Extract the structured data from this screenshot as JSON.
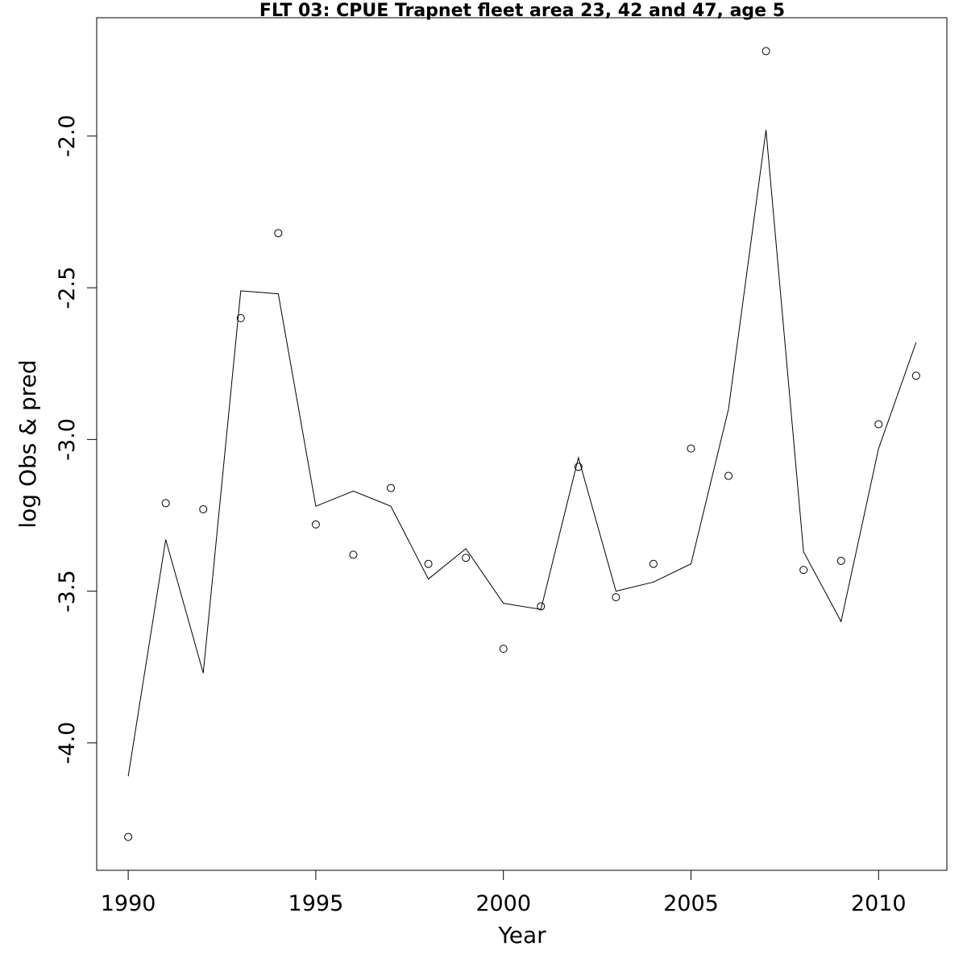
{
  "chart_data": {
    "type": "line",
    "title": "FLT 03: CPUE Trapnet fleet area 23, 42 and 47, age 5",
    "xlabel": "Year",
    "ylabel": "log Obs & pred",
    "xlim": [
      1989.16,
      2011.82
    ],
    "ylim": [
      -4.42,
      -1.61
    ],
    "grid": false,
    "x_ticks": [
      1990,
      1995,
      2000,
      2005,
      2010
    ],
    "x_tick_labels": [
      "1990",
      "1995",
      "2000",
      "2005",
      "2010"
    ],
    "y_ticks": [
      -4.0,
      -3.5,
      -3.0,
      -2.5,
      -2.0
    ],
    "y_tick_labels": [
      "-4.0",
      "-3.5",
      "-3.0",
      "-2.5",
      "-2.0"
    ],
    "x": [
      1990,
      1991,
      1992,
      1993,
      1994,
      1995,
      1996,
      1997,
      1998,
      1999,
      2000,
      2001,
      2002,
      2003,
      2004,
      2005,
      2006,
      2007,
      2008,
      2009,
      2010,
      2011
    ],
    "series": [
      {
        "style": "points-open-circle",
        "values": [
          -4.31,
          -3.21,
          -3.23,
          -2.6,
          -2.32,
          -3.28,
          -3.38,
          -3.16,
          -3.41,
          -3.39,
          -3.69,
          -3.55,
          -3.09,
          -3.52,
          -3.41,
          -3.03,
          -3.12,
          -1.72,
          -3.43,
          -3.4,
          -2.95,
          -2.79
        ]
      },
      {
        "style": "line",
        "values": [
          -4.11,
          -3.33,
          -3.77,
          -2.51,
          -2.52,
          -3.22,
          -3.17,
          -3.22,
          -3.46,
          -3.36,
          -3.54,
          -3.56,
          -3.06,
          -3.5,
          -3.47,
          -3.41,
          -2.9,
          -1.98,
          -3.37,
          -3.6,
          -3.03,
          -2.68
        ]
      }
    ],
    "colors": {
      "ink": "#000000",
      "background": "#ffffff"
    }
  }
}
